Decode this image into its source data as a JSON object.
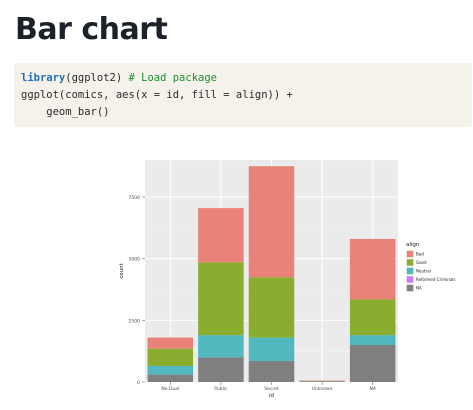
{
  "page": {
    "title": "Bar chart"
  },
  "code": {
    "line1": {
      "keyword": "library",
      "args": "(ggplot2) ",
      "comment": "# Load package"
    },
    "line2": "ggplot(comics, aes(x = id, fill = align)) +",
    "line3": "    geom_bar()"
  },
  "chart_data": {
    "type": "bar",
    "stacked": true,
    "categories": [
      "No Dual",
      "Public",
      "Secret",
      "Unknown",
      "NA"
    ],
    "xlabel": "id",
    "ylabel": "count",
    "ylim": [
      0,
      9000
    ],
    "yticks": [
      0,
      2500,
      5000,
      7500
    ],
    "ytick_labels": [
      "0",
      "2500",
      "5000",
      "7500"
    ],
    "legend_title": "align",
    "legend_position": "right",
    "grid": true,
    "background": "#ebebeb",
    "series": [
      {
        "name": "NA",
        "color": "#7f7f7f",
        "values": [
          300,
          1000,
          850,
          20,
          1500
        ]
      },
      {
        "name": "Reformed Criminals",
        "color": "#c77cff",
        "values": [
          0,
          0,
          0,
          0,
          0
        ]
      },
      {
        "name": "Neutral",
        "color": "#52b8c0",
        "values": [
          350,
          900,
          950,
          10,
          400
        ]
      },
      {
        "name": "Good",
        "color": "#8aad2f",
        "values": [
          700,
          2950,
          2450,
          10,
          1450
        ]
      },
      {
        "name": "Bad",
        "color": "#e9837a",
        "values": [
          450,
          2200,
          4500,
          20,
          2450
        ]
      }
    ],
    "legend_order": [
      "Bad",
      "Good",
      "Neutral",
      "Reformed Criminals",
      "NA"
    ]
  }
}
